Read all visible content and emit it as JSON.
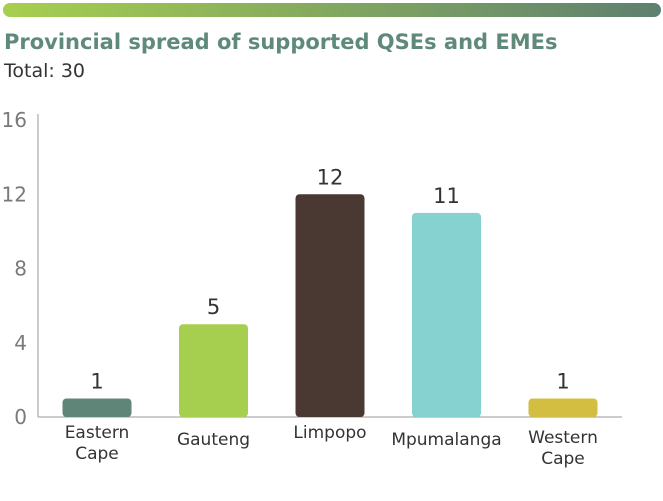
{
  "header": {
    "gradient_colors": [
      "#a7cf4f",
      "#5e8070"
    ]
  },
  "chart_data": {
    "type": "bar",
    "title": "Provincial spread of supported QSEs and EMEs",
    "subtitle": "Total: 30",
    "categories": [
      [
        "Eastern",
        "Cape"
      ],
      [
        "Gauteng"
      ],
      [
        "Limpopo"
      ],
      [
        "Mpumalanga"
      ],
      [
        "Western",
        "Cape"
      ]
    ],
    "values": [
      1,
      5,
      12,
      11,
      1
    ],
    "colors": [
      "#5f8578",
      "#a7cf4f",
      "#4a3832",
      "#86d2d1",
      "#d3be42"
    ],
    "ylim": [
      0,
      16
    ],
    "yticks": [
      0,
      4,
      8,
      12,
      16
    ],
    "xlabel": "",
    "ylabel": "",
    "grid": false,
    "legend": "none"
  }
}
